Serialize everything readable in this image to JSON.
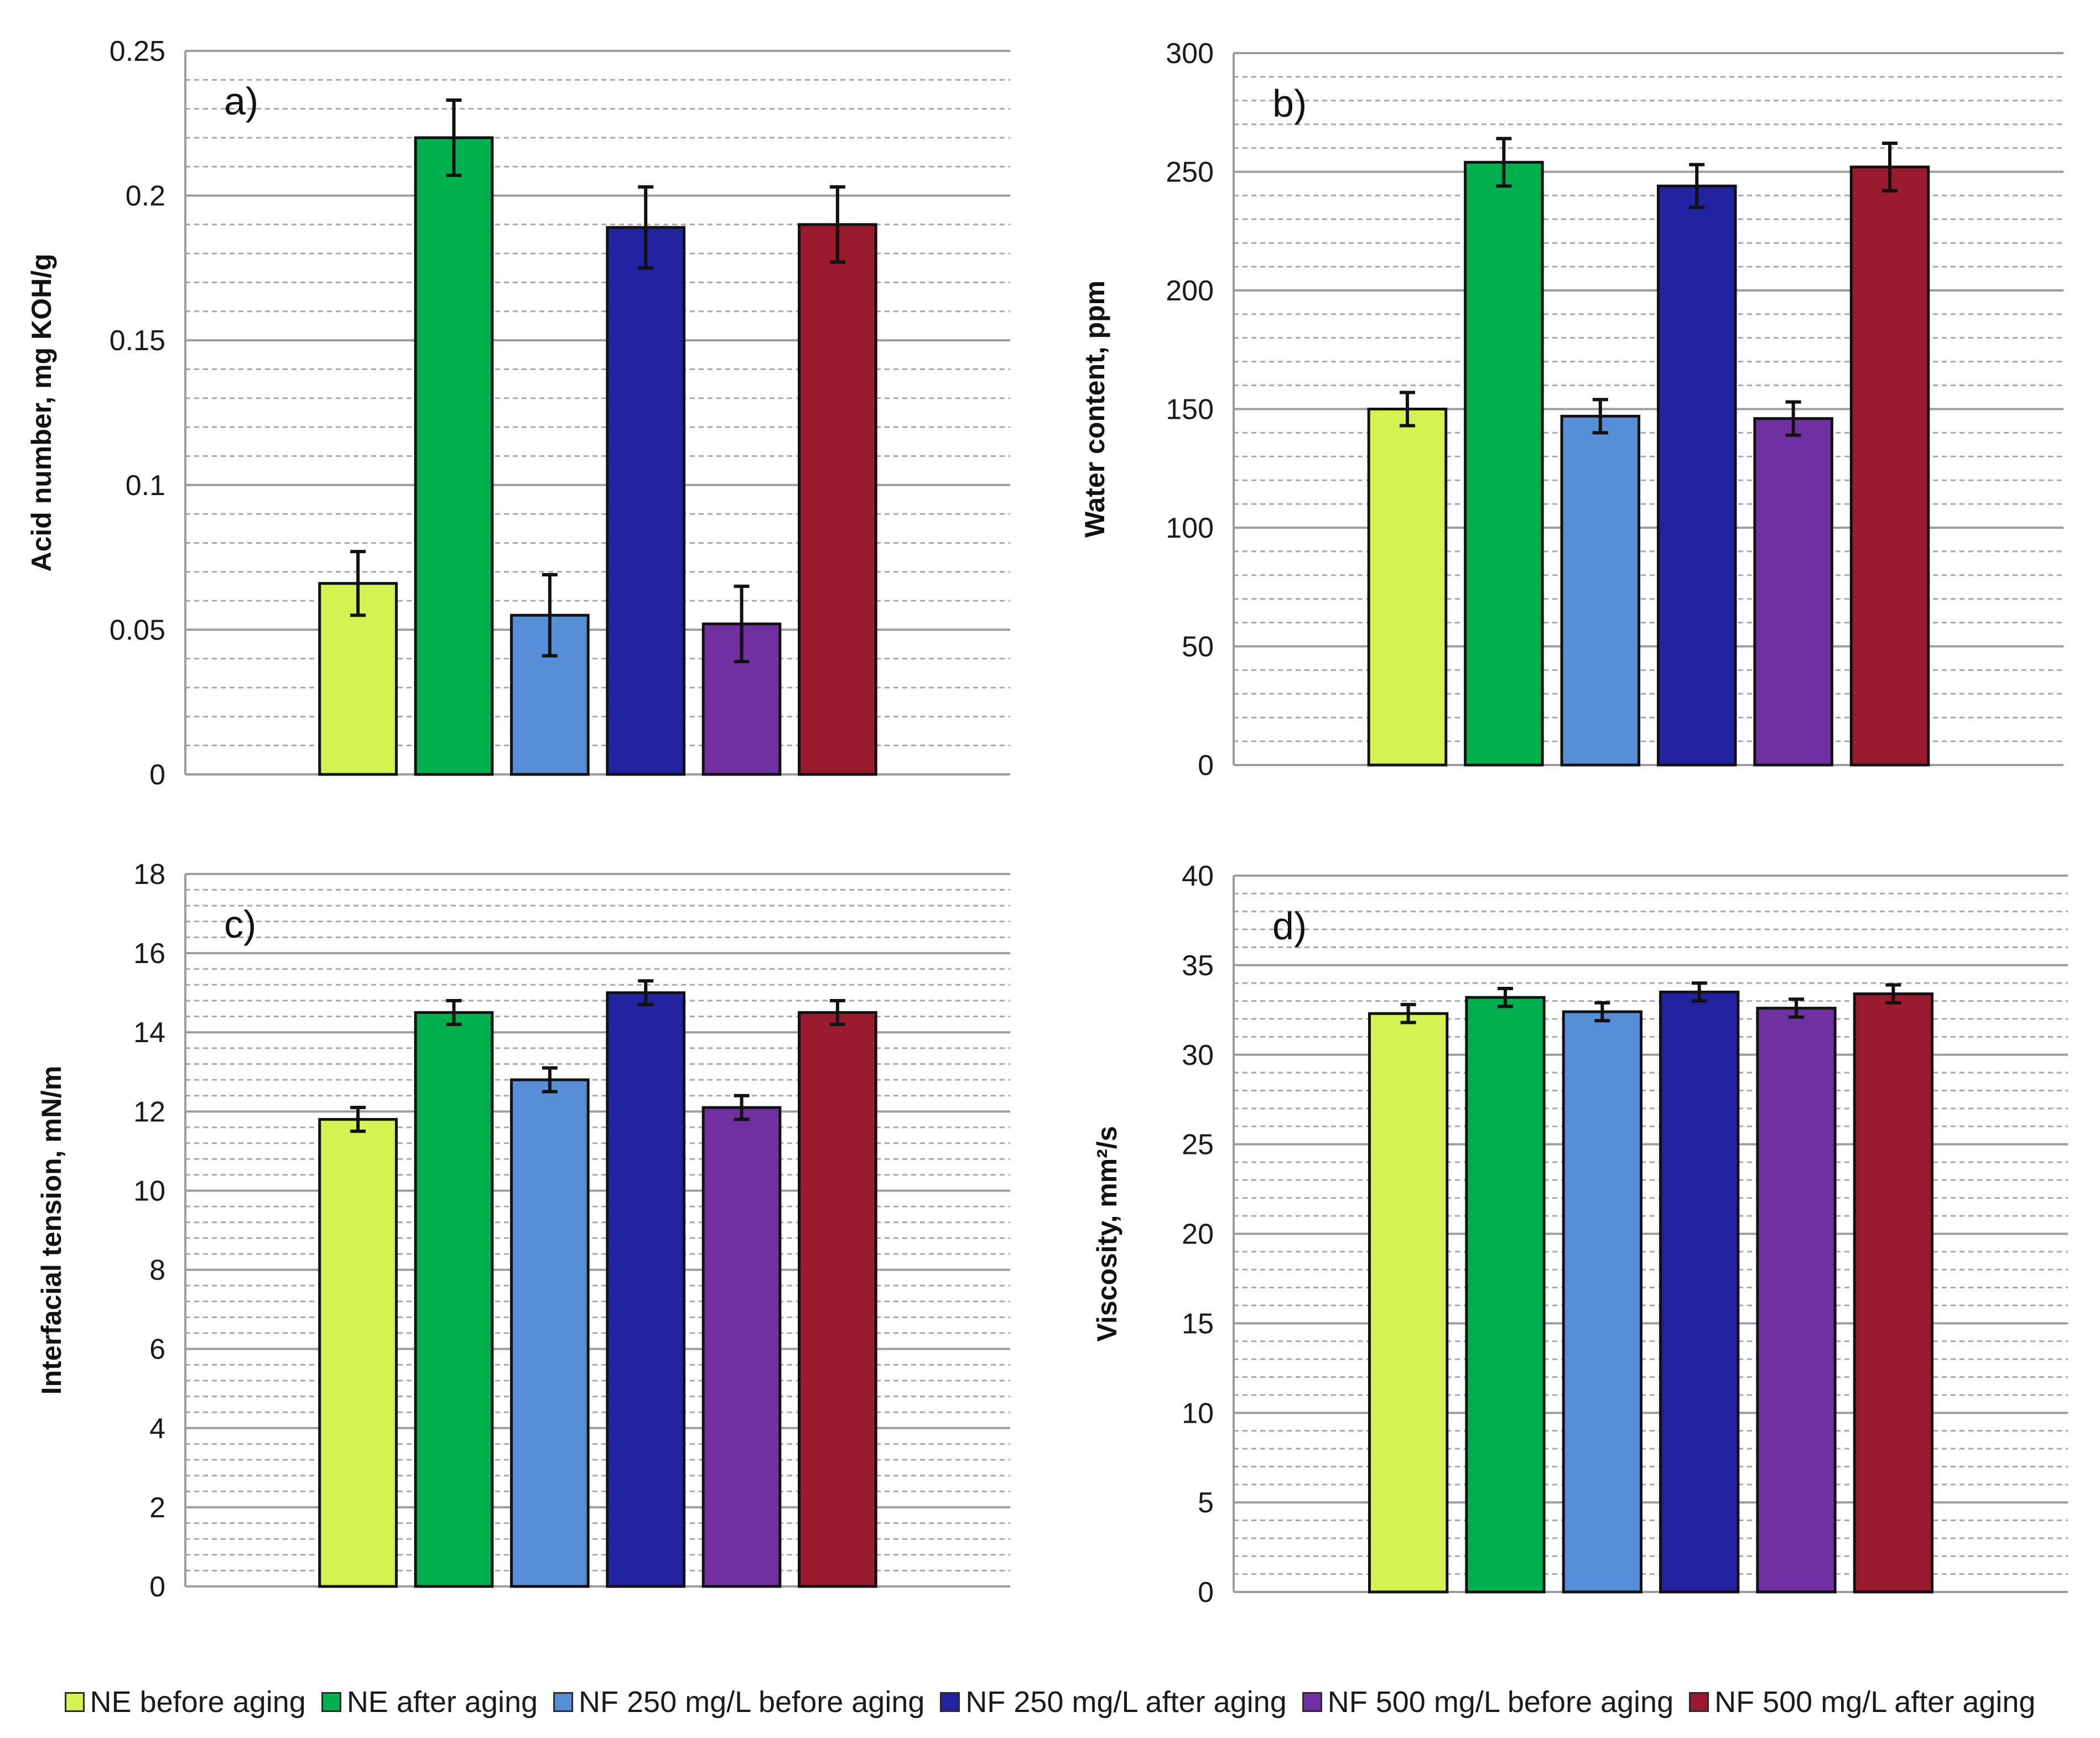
{
  "chart_data": [
    {
      "type": "bar",
      "panel_label": "a)",
      "ylabel": "Acid number, mg KOH/g",
      "ylim": [
        0,
        0.25
      ],
      "yticks": [
        0,
        0.05,
        0.1,
        0.15,
        0.2,
        0.25
      ],
      "ytick_labels": [
        "0",
        "0.05",
        "0.1",
        "0.15",
        "0.2",
        "0.25"
      ],
      "categories": [
        "NE before aging",
        "NE after aging",
        "NF 250 mg/L before aging",
        "NF 250 mg/L after aging",
        "NF 500 mg/L before aging",
        "NF 500 mg/L after aging"
      ],
      "values": [
        0.066,
        0.22,
        0.055,
        0.189,
        0.052,
        0.19
      ],
      "errors": [
        0.011,
        0.013,
        0.014,
        0.014,
        0.013,
        0.013
      ],
      "grid": true
    },
    {
      "type": "bar",
      "panel_label": "b)",
      "ylabel": "Water content, ppm",
      "ylim": [
        0,
        300
      ],
      "yticks": [
        0,
        50,
        100,
        150,
        200,
        250,
        300
      ],
      "ytick_labels": [
        "0",
        "50",
        "100",
        "150",
        "200",
        "250",
        "300"
      ],
      "categories": [
        "NE before aging",
        "NE after aging",
        "NF 250 mg/L before aging",
        "NF 250 mg/L after aging",
        "NF 500 mg/L before aging",
        "NF 500 mg/L after aging"
      ],
      "values": [
        150,
        254,
        147,
        244,
        146,
        252
      ],
      "errors": [
        7,
        10,
        7,
        9,
        7,
        10
      ],
      "grid": true
    },
    {
      "type": "bar",
      "panel_label": "c)",
      "ylabel": "Interfacial tension, mN/m",
      "ylim": [
        0,
        18
      ],
      "yticks": [
        0,
        2,
        4,
        6,
        8,
        10,
        12,
        14,
        16,
        18
      ],
      "ytick_labels": [
        "0",
        "2",
        "4",
        "6",
        "8",
        "10",
        "12",
        "14",
        "16",
        "18"
      ],
      "categories": [
        "NE before aging",
        "NE after aging",
        "NF 250 mg/L before aging",
        "NF 250 mg/L after aging",
        "NF 500 mg/L before aging",
        "NF 500 mg/L after aging"
      ],
      "values": [
        11.8,
        14.5,
        12.8,
        15.0,
        12.1,
        14.5
      ],
      "errors": [
        0.3,
        0.3,
        0.3,
        0.3,
        0.3,
        0.3
      ],
      "grid": true
    },
    {
      "type": "bar",
      "panel_label": "d)",
      "ylabel": "Viscosity, mm²/s",
      "ylim": [
        0,
        40
      ],
      "yticks": [
        0,
        5,
        10,
        15,
        20,
        25,
        30,
        35,
        40
      ],
      "ytick_labels": [
        "0",
        "5",
        "10",
        "15",
        "20",
        "25",
        "30",
        "35",
        "40"
      ],
      "categories": [
        "NE before aging",
        "NE after aging",
        "NF 250 mg/L before aging",
        "NF 250 mg/L after aging",
        "NF 500 mg/L before aging",
        "NF 500 mg/L after aging"
      ],
      "values": [
        32.3,
        33.2,
        32.4,
        33.5,
        32.6,
        33.4
      ],
      "errors": [
        0.5,
        0.5,
        0.5,
        0.5,
        0.5,
        0.5
      ],
      "grid": true
    }
  ],
  "legend": {
    "position": "bottom",
    "items": [
      {
        "label": "NE before aging",
        "color": "#d4f252"
      },
      {
        "label": "NE after aging",
        "color": "#00b04f"
      },
      {
        "label": "NF 250 mg/L before aging",
        "color": "#568fd6"
      },
      {
        "label": "NF 250 mg/L after aging",
        "color": "#2222a0"
      },
      {
        "label": "NF 500 mg/L before aging",
        "color": "#7030a0"
      },
      {
        "label": "NF 500 mg/L after aging",
        "color": "#981a2c"
      }
    ]
  }
}
